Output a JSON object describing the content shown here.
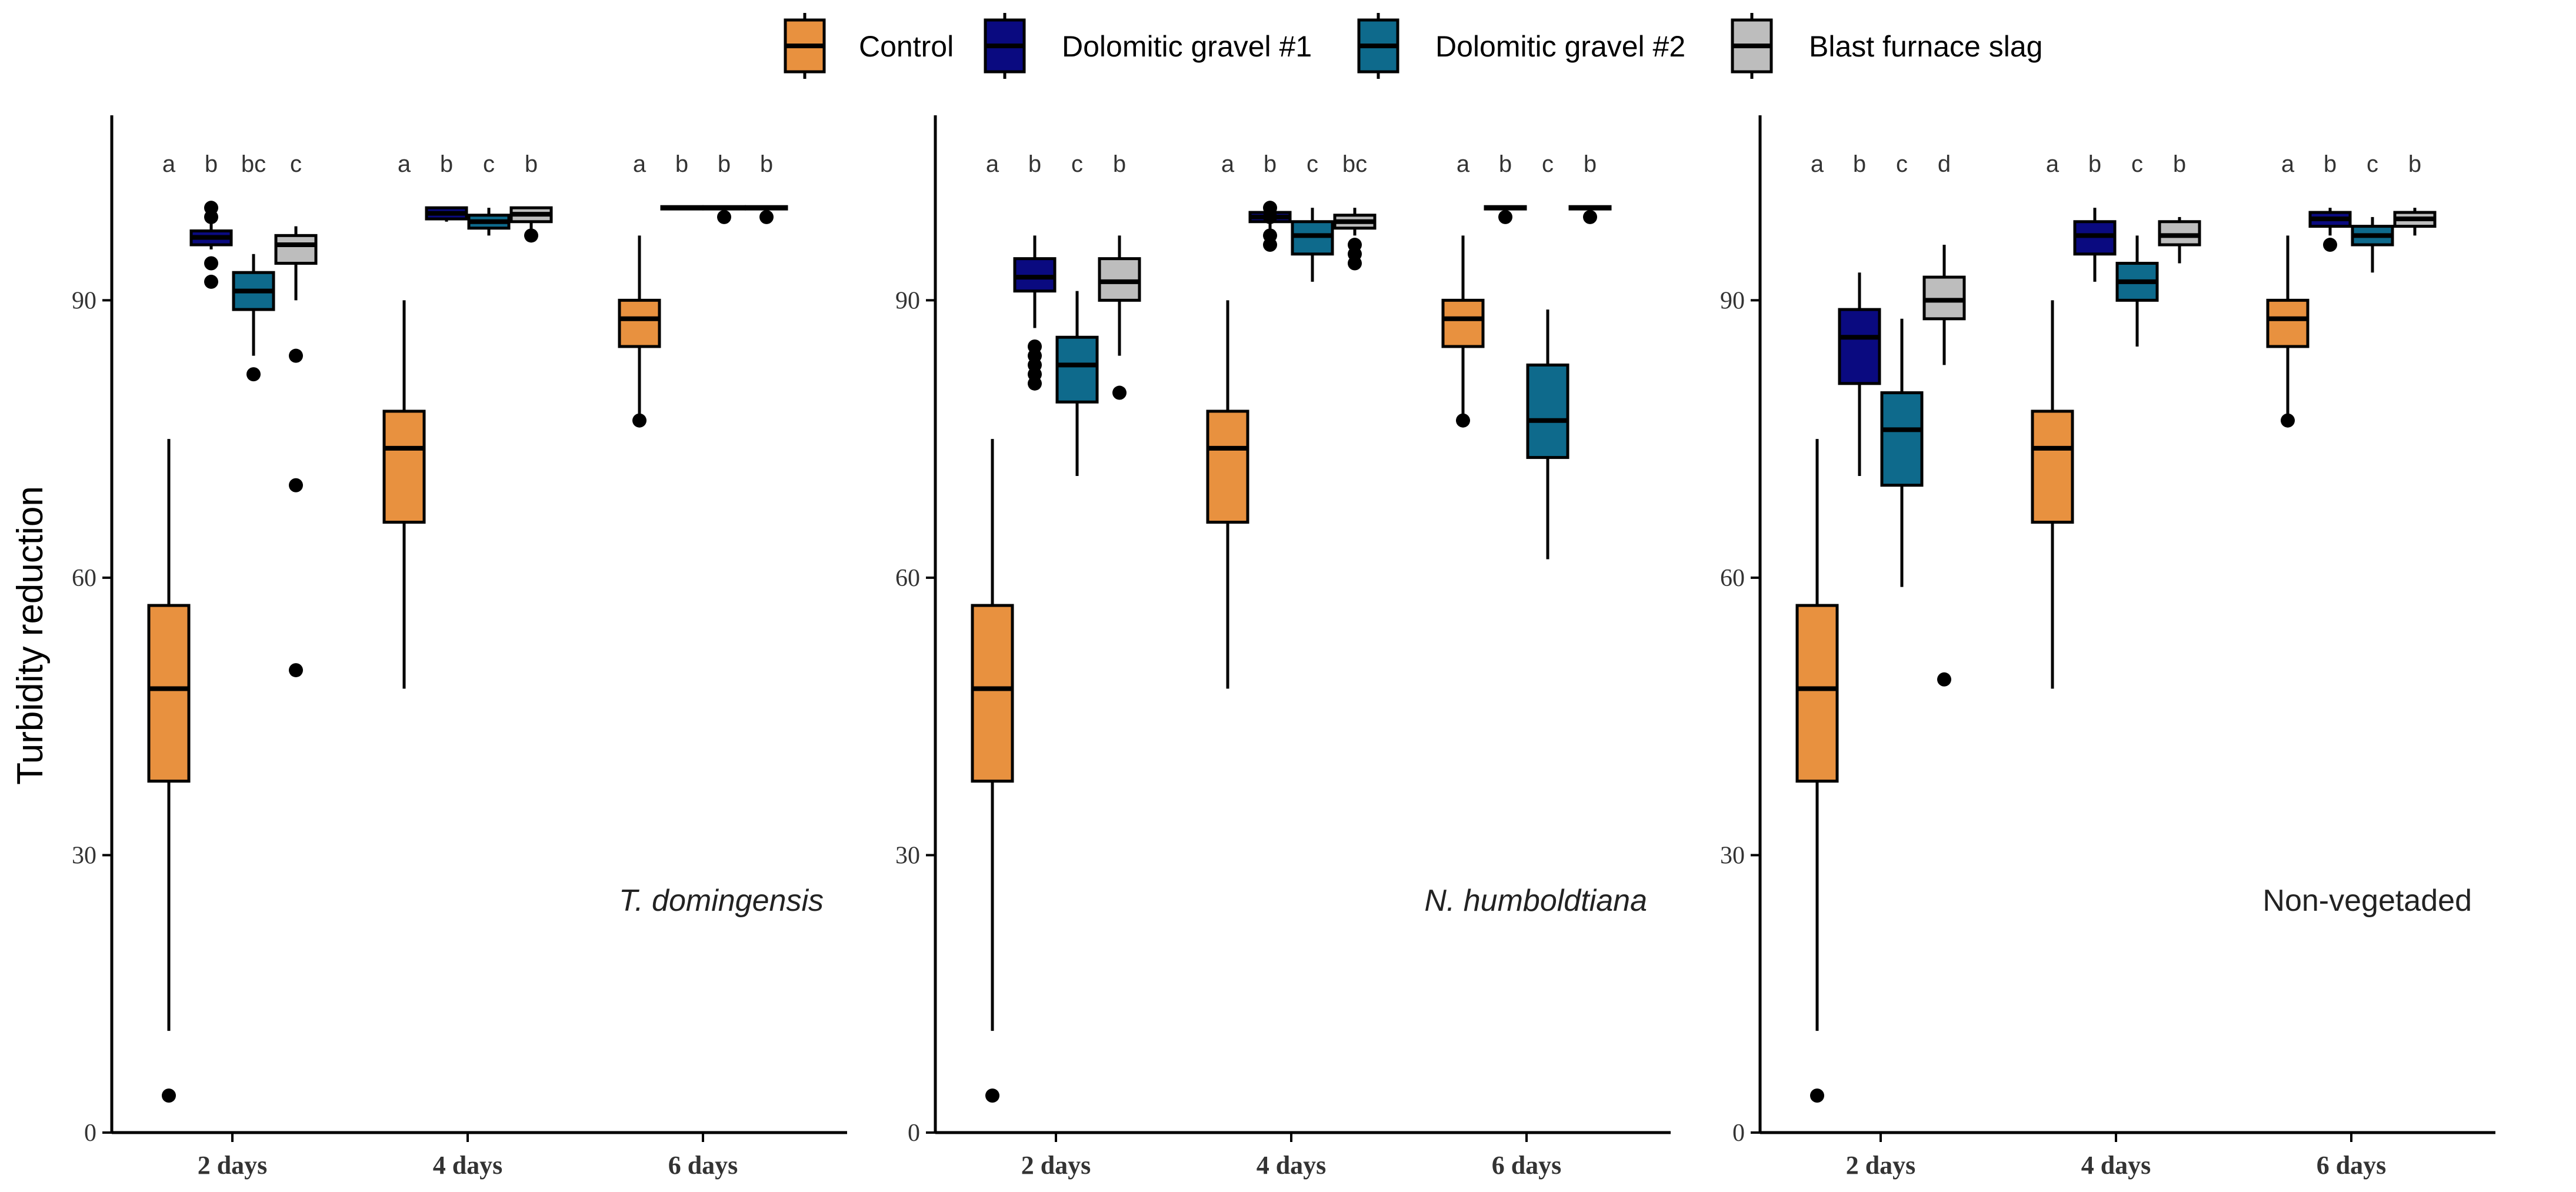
{
  "chart_data": {
    "type": "boxplot",
    "y_axis_title": "Turbidity reduction",
    "ylim": [
      0,
      110
    ],
    "y_ticks": [
      0,
      30,
      60,
      90
    ],
    "categories": [
      "2 days",
      "4 days",
      "6 days"
    ],
    "legend": {
      "placement": "top",
      "items": [
        {
          "name": "Control",
          "color": "#E8913F"
        },
        {
          "name": "Dolomitic gravel #1",
          "color": "#0A0A80"
        },
        {
          "name": "Dolomitic gravel #2",
          "color": "#0E6A8C"
        },
        {
          "name": "Blast furnace slag",
          "color": "#BDBDBD"
        }
      ]
    },
    "panels": [
      {
        "label": "T. domingensis",
        "italic": true,
        "groups": [
          {
            "category": "2 days",
            "boxes": [
              {
                "series": "Control",
                "letter": "a",
                "whisker_low": 11,
                "q1": 38,
                "median": 48,
                "q3": 57,
                "whisker_high": 75,
                "outliers": [
                  4
                ]
              },
              {
                "series": "Dolomitic gravel #1",
                "letter": "b",
                "whisker_low": 95.5,
                "q1": 96,
                "median": 96.8,
                "q3": 97.5,
                "whisker_high": 98.5,
                "outliers": [
                  92,
                  94,
                  99,
                  100
                ]
              },
              {
                "series": "Dolomitic gravel #2",
                "letter": "bc",
                "whisker_low": 84,
                "q1": 89,
                "median": 91,
                "q3": 93,
                "whisker_high": 95,
                "outliers": [
                  82
                ]
              },
              {
                "series": "Blast furnace slag",
                "letter": "c",
                "whisker_low": 90,
                "q1": 94,
                "median": 96,
                "q3": 97,
                "whisker_high": 98,
                "outliers": [
                  84,
                  70,
                  50
                ]
              }
            ]
          },
          {
            "category": "4 days",
            "boxes": [
              {
                "series": "Control",
                "letter": "a",
                "whisker_low": 48,
                "q1": 66,
                "median": 74,
                "q3": 78,
                "whisker_high": 90,
                "outliers": []
              },
              {
                "series": "Dolomitic gravel #1",
                "letter": "b",
                "whisker_low": 98.5,
                "q1": 98.8,
                "median": 99.4,
                "q3": 100,
                "whisker_high": 100,
                "outliers": []
              },
              {
                "series": "Dolomitic gravel #2",
                "letter": "c",
                "whisker_low": 97,
                "q1": 97.8,
                "median": 98.5,
                "q3": 99.2,
                "whisker_high": 100,
                "outliers": []
              },
              {
                "series": "Blast furnace slag",
                "letter": "b",
                "whisker_low": 97.5,
                "q1": 98.5,
                "median": 99.3,
                "q3": 100,
                "whisker_high": 100,
                "outliers": [
                  97
                ]
              }
            ]
          },
          {
            "category": "6 days",
            "boxes": [
              {
                "series": "Control",
                "letter": "a",
                "whisker_low": 77,
                "q1": 85,
                "median": 88,
                "q3": 90,
                "whisker_high": 97,
                "outliers": [
                  77
                ]
              },
              {
                "series": "Dolomitic gravel #1",
                "letter": "b",
                "whisker_low": 100,
                "q1": 100,
                "median": 100,
                "q3": 100,
                "whisker_high": 100,
                "outliers": []
              },
              {
                "series": "Dolomitic gravel #2",
                "letter": "b",
                "whisker_low": 100,
                "q1": 100,
                "median": 100,
                "q3": 100,
                "whisker_high": 100,
                "outliers": [
                  99
                ]
              },
              {
                "series": "Blast furnace slag",
                "letter": "b",
                "whisker_low": 100,
                "q1": 100,
                "median": 100,
                "q3": 100,
                "whisker_high": 100,
                "outliers": [
                  99
                ]
              }
            ]
          }
        ]
      },
      {
        "label": "N. humboldtiana",
        "italic": true,
        "groups": [
          {
            "category": "2 days",
            "boxes": [
              {
                "series": "Control",
                "letter": "a",
                "whisker_low": 11,
                "q1": 38,
                "median": 48,
                "q3": 57,
                "whisker_high": 75,
                "outliers": [
                  4
                ]
              },
              {
                "series": "Dolomitic gravel #1",
                "letter": "b",
                "whisker_low": 87,
                "q1": 91,
                "median": 92.5,
                "q3": 94.5,
                "whisker_high": 97,
                "outliers": [
                  81,
                  82,
                  83,
                  84,
                  85
                ]
              },
              {
                "series": "Dolomitic gravel #2",
                "letter": "c",
                "whisker_low": 71,
                "q1": 79,
                "median": 83,
                "q3": 86,
                "whisker_high": 91,
                "outliers": []
              },
              {
                "series": "Blast furnace slag",
                "letter": "b",
                "whisker_low": 84,
                "q1": 90,
                "median": 92,
                "q3": 94.5,
                "whisker_high": 97,
                "outliers": [
                  80
                ]
              }
            ]
          },
          {
            "category": "4 days",
            "boxes": [
              {
                "series": "Control",
                "letter": "a",
                "whisker_low": 48,
                "q1": 66,
                "median": 74,
                "q3": 78,
                "whisker_high": 90,
                "outliers": []
              },
              {
                "series": "Dolomitic gravel #1",
                "letter": "b",
                "whisker_low": 97,
                "q1": 98.5,
                "median": 99,
                "q3": 99.5,
                "whisker_high": 100,
                "outliers": [
                  96,
                  97,
                  99,
                  100
                ]
              },
              {
                "series": "Dolomitic gravel #2",
                "letter": "c",
                "whisker_low": 92,
                "q1": 95,
                "median": 97,
                "q3": 98.5,
                "whisker_high": 100,
                "outliers": []
              },
              {
                "series": "Blast furnace slag",
                "letter": "bc",
                "whisker_low": 97,
                "q1": 97.8,
                "median": 98.5,
                "q3": 99.2,
                "whisker_high": 100,
                "outliers": [
                  94,
                  95,
                  96
                ]
              }
            ]
          },
          {
            "category": "6 days",
            "boxes": [
              {
                "series": "Control",
                "letter": "a",
                "whisker_low": 77,
                "q1": 85,
                "median": 88,
                "q3": 90,
                "whisker_high": 97,
                "outliers": [
                  77
                ]
              },
              {
                "series": "Dolomitic gravel #1",
                "letter": "b",
                "whisker_low": 100,
                "q1": 100,
                "median": 100,
                "q3": 100,
                "whisker_high": 100,
                "outliers": [
                  99
                ]
              },
              {
                "series": "Dolomitic gravel #2",
                "letter": "c",
                "whisker_low": 62,
                "q1": 73,
                "median": 77,
                "q3": 83,
                "whisker_high": 89,
                "outliers": []
              },
              {
                "series": "Blast furnace slag",
                "letter": "b",
                "whisker_low": 100,
                "q1": 100,
                "median": 100,
                "q3": 100,
                "whisker_high": 100,
                "outliers": [
                  99
                ]
              }
            ]
          }
        ]
      },
      {
        "label": "Non-vegetaded",
        "italic": false,
        "groups": [
          {
            "category": "2 days",
            "boxes": [
              {
                "series": "Control",
                "letter": "a",
                "whisker_low": 11,
                "q1": 38,
                "median": 48,
                "q3": 57,
                "whisker_high": 75,
                "outliers": [
                  4
                ]
              },
              {
                "series": "Dolomitic gravel #1",
                "letter": "b",
                "whisker_low": 71,
                "q1": 81,
                "median": 86,
                "q3": 89,
                "whisker_high": 93,
                "outliers": []
              },
              {
                "series": "Dolomitic gravel #2",
                "letter": "c",
                "whisker_low": 59,
                "q1": 70,
                "median": 76,
                "q3": 80,
                "whisker_high": 88,
                "outliers": []
              },
              {
                "series": "Blast furnace slag",
                "letter": "d",
                "whisker_low": 83,
                "q1": 88,
                "median": 90,
                "q3": 92.5,
                "whisker_high": 96,
                "outliers": [
                  49
                ]
              }
            ]
          },
          {
            "category": "4 days",
            "boxes": [
              {
                "series": "Control",
                "letter": "a",
                "whisker_low": 48,
                "q1": 66,
                "median": 74,
                "q3": 78,
                "whisker_high": 90,
                "outliers": []
              },
              {
                "series": "Dolomitic gravel #1",
                "letter": "b",
                "whisker_low": 92,
                "q1": 95,
                "median": 97,
                "q3": 98.5,
                "whisker_high": 100,
                "outliers": []
              },
              {
                "series": "Dolomitic gravel #2",
                "letter": "c",
                "whisker_low": 85,
                "q1": 90,
                "median": 92,
                "q3": 94,
                "whisker_high": 97,
                "outliers": []
              },
              {
                "series": "Blast furnace slag",
                "letter": "b",
                "whisker_low": 94,
                "q1": 96,
                "median": 97,
                "q3": 98.5,
                "whisker_high": 99,
                "outliers": []
              }
            ]
          },
          {
            "category": "6 days",
            "boxes": [
              {
                "series": "Control",
                "letter": "a",
                "whisker_low": 77,
                "q1": 85,
                "median": 88,
                "q3": 90,
                "whisker_high": 97,
                "outliers": [
                  77
                ]
              },
              {
                "series": "Dolomitic gravel #1",
                "letter": "b",
                "whisker_low": 97,
                "q1": 98,
                "median": 98.8,
                "q3": 99.5,
                "whisker_high": 100,
                "outliers": [
                  96
                ]
              },
              {
                "series": "Dolomitic gravel #2",
                "letter": "c",
                "whisker_low": 93,
                "q1": 96,
                "median": 97,
                "q3": 98,
                "whisker_high": 99,
                "outliers": []
              },
              {
                "series": "Blast furnace slag",
                "letter": "b",
                "whisker_low": 97,
                "q1": 98,
                "median": 98.8,
                "q3": 99.5,
                "whisker_high": 100,
                "outliers": []
              }
            ]
          }
        ]
      }
    ]
  }
}
